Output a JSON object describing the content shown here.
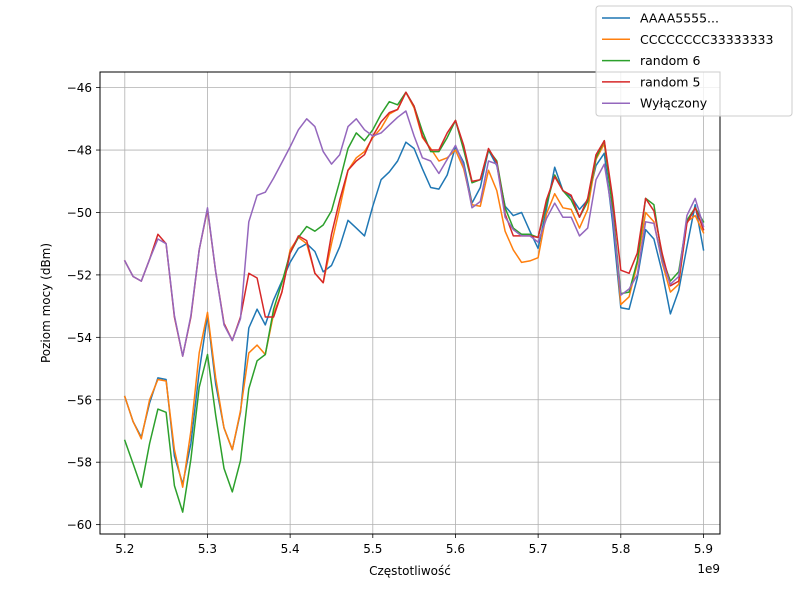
{
  "chart_data": {
    "type": "line",
    "title": "",
    "xlabel": "Częstotliwość",
    "ylabel": "Poziom mocy (dBm)",
    "x_offset_label": "1e9",
    "xlim": [
      5.17,
      5.92
    ],
    "ylim": [
      -60.3,
      -45.5
    ],
    "xticks": [
      5.2,
      5.3,
      5.4,
      5.5,
      5.6,
      5.7,
      5.8,
      5.9
    ],
    "xtick_labels": [
      "5.2",
      "5.3",
      "5.4",
      "5.5",
      "5.6",
      "5.7",
      "5.8",
      "5.9"
    ],
    "yticks": [
      -60,
      -58,
      -56,
      -54,
      -52,
      -50,
      -48,
      -46
    ],
    "ytick_labels": [
      "−60",
      "−58",
      "−56",
      "−54",
      "−52",
      "−50",
      "−48",
      "−46"
    ],
    "grid": true,
    "legend_position": "top-right",
    "x": [
      5.2,
      5.21,
      5.22,
      5.23,
      5.24,
      5.25,
      5.26,
      5.27,
      5.28,
      5.29,
      5.3,
      5.31,
      5.32,
      5.33,
      5.34,
      5.35,
      5.36,
      5.37,
      5.38,
      5.39,
      5.4,
      5.41,
      5.42,
      5.43,
      5.44,
      5.45,
      5.46,
      5.47,
      5.48,
      5.49,
      5.5,
      5.51,
      5.52,
      5.53,
      5.54,
      5.55,
      5.56,
      5.57,
      5.58,
      5.59,
      5.6,
      5.61,
      5.62,
      5.63,
      5.64,
      5.65,
      5.66,
      5.67,
      5.68,
      5.69,
      5.7,
      5.71,
      5.72,
      5.73,
      5.74,
      5.75,
      5.76,
      5.77,
      5.78,
      5.79,
      5.8,
      5.81,
      5.82,
      5.83,
      5.84,
      5.85,
      5.86,
      5.87,
      5.88,
      5.89,
      5.9
    ],
    "series": [
      {
        "name": "AAAA5555...",
        "color": "#1f77b4",
        "values": [
          -55.9,
          -56.7,
          -57.2,
          -56.1,
          -55.3,
          -55.35,
          -57.8,
          -58.7,
          -57.4,
          -55.1,
          -53.3,
          -55.5,
          -56.9,
          -57.6,
          -56.4,
          -53.7,
          -53.1,
          -53.6,
          -52.8,
          -52.2,
          -51.6,
          -51.15,
          -51.0,
          -51.25,
          -51.9,
          -51.7,
          -51.1,
          -50.25,
          -50.5,
          -50.75,
          -49.8,
          -48.95,
          -48.7,
          -48.35,
          -47.75,
          -47.95,
          -48.6,
          -49.2,
          -49.25,
          -48.8,
          -47.9,
          -48.4,
          -49.7,
          -49.2,
          -48.0,
          -48.5,
          -49.8,
          -50.1,
          -50.0,
          -50.6,
          -51.15,
          -49.9,
          -48.55,
          -49.3,
          -49.5,
          -49.9,
          -49.6,
          -48.5,
          -48.1,
          -50.3,
          -53.05,
          -53.1,
          -52.1,
          -50.55,
          -50.85,
          -51.9,
          -53.25,
          -52.5,
          -51.1,
          -49.75,
          -51.2
        ]
      },
      {
        "name": "CCCCCCCC33333333",
        "color": "#ff7f0e",
        "values": [
          -55.9,
          -56.7,
          -57.25,
          -56.0,
          -55.35,
          -55.4,
          -57.6,
          -58.8,
          -57.0,
          -54.5,
          -53.2,
          -55.3,
          -56.9,
          -57.6,
          -56.35,
          -54.5,
          -54.25,
          -54.55,
          -53.25,
          -52.55,
          -51.2,
          -50.8,
          -51.0,
          -51.95,
          -52.25,
          -51.0,
          -49.85,
          -48.65,
          -48.25,
          -48.05,
          -47.6,
          -47.3,
          -46.85,
          -46.7,
          -46.15,
          -46.65,
          -47.6,
          -47.95,
          -48.35,
          -48.25,
          -48.0,
          -48.6,
          -49.75,
          -49.8,
          -48.65,
          -49.3,
          -50.6,
          -51.2,
          -51.6,
          -51.55,
          -51.45,
          -50.05,
          -49.4,
          -49.85,
          -49.9,
          -50.5,
          -49.9,
          -48.3,
          -47.8,
          -49.7,
          -52.95,
          -52.7,
          -51.65,
          -50.0,
          -50.3,
          -51.6,
          -52.55,
          -52.3,
          -50.3,
          -50.1,
          -50.65
        ]
      },
      {
        "name": "random 6",
        "color": "#2ca02c",
        "values": [
          -57.3,
          -58.05,
          -58.8,
          -57.4,
          -56.3,
          -56.4,
          -58.75,
          -59.6,
          -57.9,
          -55.6,
          -54.55,
          -56.5,
          -58.2,
          -58.95,
          -57.95,
          -55.65,
          -54.75,
          -54.55,
          -53.1,
          -52.25,
          -51.3,
          -50.8,
          -50.45,
          -50.6,
          -50.4,
          -49.95,
          -49.0,
          -47.95,
          -47.45,
          -47.7,
          -47.35,
          -46.85,
          -46.45,
          -46.55,
          -46.15,
          -46.6,
          -47.4,
          -48.05,
          -48.05,
          -47.6,
          -47.05,
          -48.0,
          -49.05,
          -48.95,
          -48.0,
          -48.35,
          -49.85,
          -50.5,
          -50.7,
          -50.7,
          -50.8,
          -49.75,
          -48.8,
          -49.3,
          -49.6,
          -50.15,
          -49.65,
          -48.25,
          -47.7,
          -49.85,
          -52.6,
          -52.55,
          -51.55,
          -49.55,
          -49.75,
          -51.45,
          -52.2,
          -51.9,
          -50.25,
          -49.85,
          -50.3
        ]
      },
      {
        "name": "random 5",
        "color": "#d62728",
        "values": [
          -51.55,
          -52.05,
          -52.2,
          -51.5,
          -50.7,
          -51.0,
          -53.35,
          -54.6,
          -53.35,
          -51.2,
          -49.9,
          -51.9,
          -53.55,
          -54.1,
          -53.35,
          -51.95,
          -52.1,
          -53.35,
          -53.35,
          -52.55,
          -51.3,
          -50.75,
          -50.9,
          -51.95,
          -52.25,
          -50.7,
          -49.6,
          -48.65,
          -48.35,
          -48.15,
          -47.55,
          -47.1,
          -46.8,
          -46.7,
          -46.15,
          -46.6,
          -47.55,
          -48.0,
          -48.0,
          -47.45,
          -47.05,
          -47.85,
          -49.0,
          -48.95,
          -47.95,
          -48.4,
          -50.05,
          -50.75,
          -50.75,
          -50.75,
          -50.8,
          -49.6,
          -48.85,
          -49.3,
          -49.45,
          -50.15,
          -49.55,
          -48.15,
          -47.7,
          -49.5,
          -51.85,
          -51.95,
          -51.3,
          -49.55,
          -49.95,
          -51.3,
          -52.35,
          -52.2,
          -50.35,
          -49.85,
          -50.55
        ]
      },
      {
        "name": "Wyłączony",
        "color": "#9467bd",
        "values": [
          -51.55,
          -52.05,
          -52.2,
          -51.5,
          -50.85,
          -51.0,
          -53.3,
          -54.6,
          -53.3,
          -51.2,
          -49.85,
          -51.9,
          -53.6,
          -54.1,
          -53.4,
          -50.3,
          -49.45,
          -49.35,
          -48.9,
          -48.4,
          -47.9,
          -47.35,
          -47.0,
          -47.25,
          -48.05,
          -48.45,
          -48.15,
          -47.25,
          -47.0,
          -47.35,
          -47.55,
          -47.45,
          -47.2,
          -46.95,
          -46.75,
          -47.55,
          -48.25,
          -48.35,
          -48.75,
          -48.3,
          -47.85,
          -48.5,
          -49.85,
          -49.65,
          -48.35,
          -48.45,
          -50.15,
          -50.55,
          -50.75,
          -50.75,
          -50.95,
          -50.2,
          -49.7,
          -50.15,
          -50.15,
          -50.75,
          -50.5,
          -48.95,
          -48.45,
          -50.05,
          -52.65,
          -52.45,
          -52.0,
          -50.3,
          -50.35,
          -51.55,
          -52.3,
          -52.05,
          -50.1,
          -49.55,
          -50.45
        ]
      }
    ]
  }
}
